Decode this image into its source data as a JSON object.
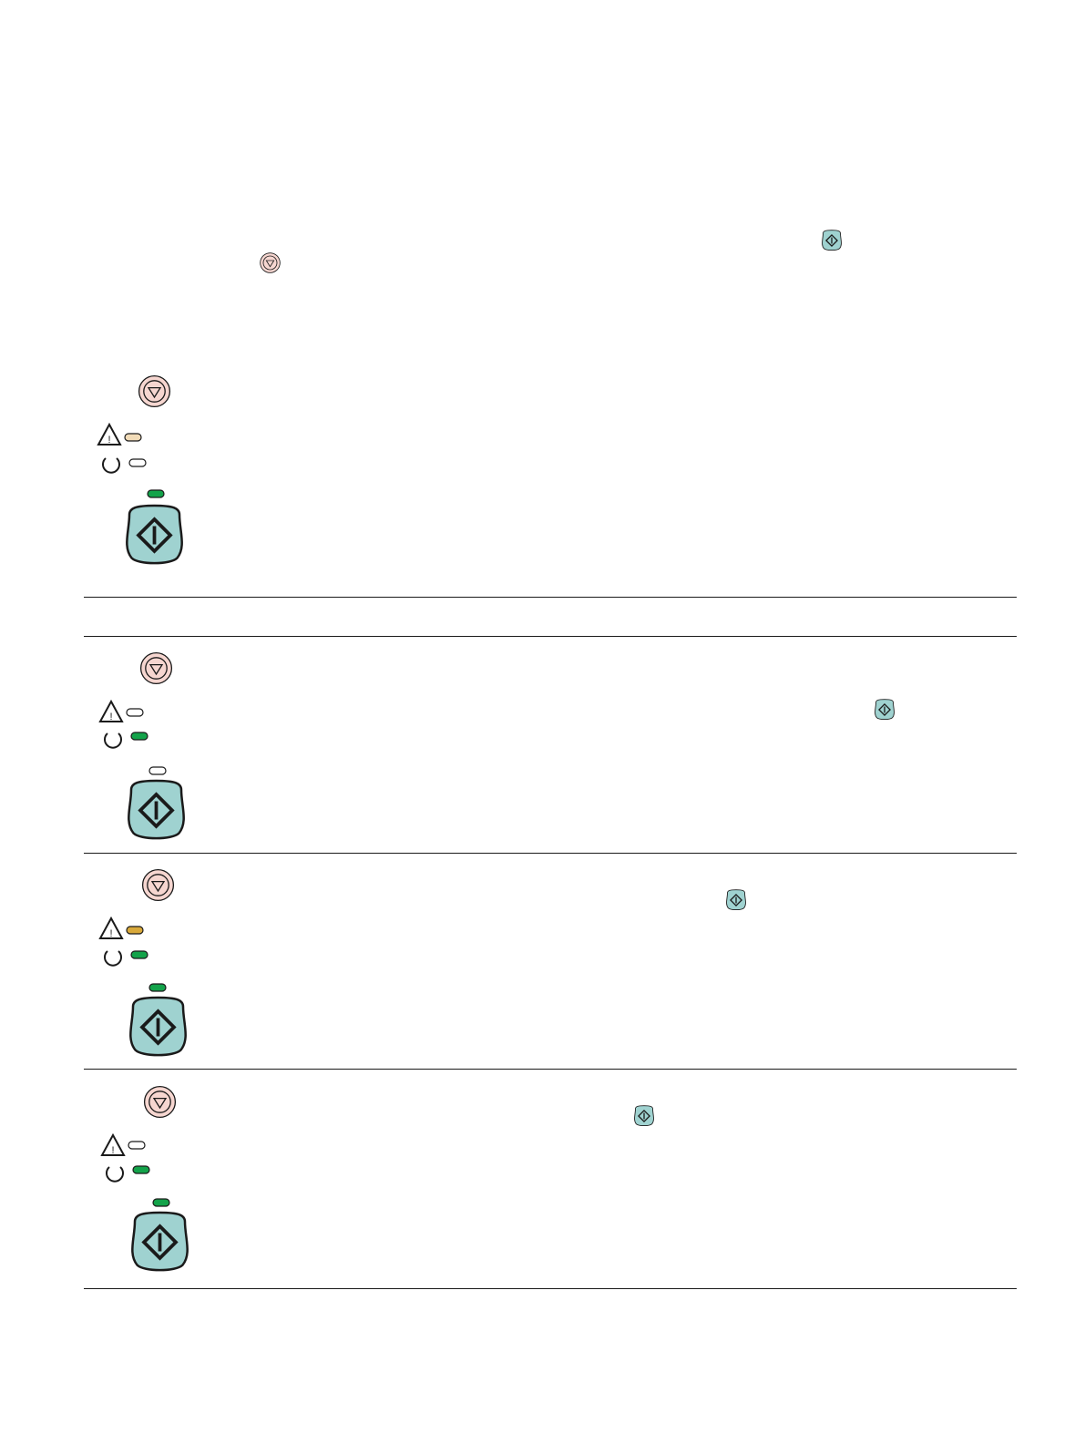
{
  "colors": {
    "go_button": "#9fd2d0",
    "cancel_button": "#f6d6d0",
    "led_green": "#13a34a",
    "led_amber": "#d9a93a",
    "led_amber_pale": "#f2dcb8",
    "led_off": "#ffffff",
    "rule": "#1a1a1a"
  },
  "icons": {
    "go": "go-button-icon",
    "cancel": "cancel-button-icon",
    "attention": "attention-warning-icon",
    "ready": "ready-circle-icon"
  },
  "panels": [
    {
      "id": "panel-1",
      "attention_led": "amber_pale",
      "ready_led": "off",
      "go_led": "green"
    },
    {
      "id": "panel-2",
      "attention_led": "off",
      "ready_led": "green",
      "go_led": "off"
    },
    {
      "id": "panel-3",
      "attention_led": "amber",
      "ready_led": "green",
      "go_led": "green"
    },
    {
      "id": "panel-4",
      "attention_led": "off",
      "ready_led": "green",
      "go_led": "green"
    }
  ]
}
